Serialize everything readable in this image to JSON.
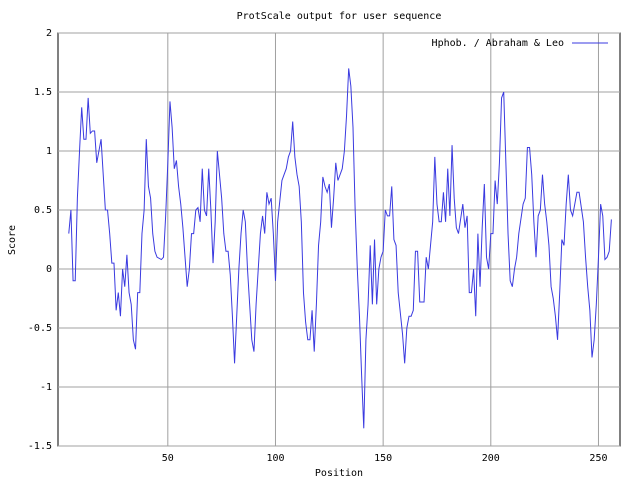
{
  "chart_data": {
    "type": "line",
    "title": "ProtScale output for user sequence",
    "x_label": "Position",
    "y_label": "Score",
    "xlim": [
      -1,
      260
    ],
    "ylim": [
      -1.5,
      2
    ],
    "xticks": [
      50,
      100,
      150,
      200,
      250
    ],
    "yticks": [
      -1.5,
      -1,
      -0.5,
      0,
      0.5,
      1,
      1.5,
      2
    ],
    "grid": true,
    "legend": "upper right",
    "x": [
      4,
      5,
      6,
      7,
      8,
      9,
      10,
      11,
      12,
      13,
      14,
      15,
      16,
      17,
      19,
      20,
      21,
      22,
      23,
      24,
      25,
      26,
      27,
      28,
      29,
      30,
      31,
      32,
      33,
      34,
      35,
      36,
      37,
      38,
      39,
      40,
      41,
      42,
      43,
      44,
      45,
      47,
      48,
      49,
      50,
      51,
      52,
      53,
      54,
      55,
      56,
      57,
      58,
      59,
      60,
      61,
      62,
      63,
      64,
      65,
      66,
      67,
      68,
      69,
      70,
      71,
      72,
      73,
      75,
      76,
      77,
      78,
      79,
      80,
      81,
      82,
      83,
      84,
      85,
      86,
      87,
      88,
      89,
      90,
      91,
      92,
      93,
      94,
      95,
      96,
      97,
      98,
      99,
      100,
      101,
      103,
      104,
      105,
      106,
      107,
      108,
      109,
      110,
      111,
      112,
      113,
      114,
      115,
      116,
      117,
      118,
      119,
      120,
      121,
      122,
      123,
      124,
      125,
      126,
      127,
      128,
      129,
      131,
      132,
      133,
      134,
      135,
      136,
      137,
      138,
      139,
      140,
      141,
      142,
      143,
      144,
      145,
      146,
      147,
      148,
      149,
      150,
      151,
      152,
      153,
      154,
      155,
      156,
      157,
      159,
      160,
      161,
      162,
      163,
      164,
      165,
      166,
      167,
      168,
      169,
      170,
      171,
      172,
      173,
      174,
      175,
      176,
      177,
      178,
      179,
      180,
      181,
      182,
      183,
      184,
      185,
      187,
      188,
      189,
      190,
      191,
      192,
      193,
      194,
      195,
      196,
      197,
      198,
      199,
      200,
      201,
      202,
      203,
      204,
      205,
      206,
      207,
      208,
      209,
      210,
      211,
      212,
      213,
      215,
      216,
      217,
      218,
      219,
      220,
      221,
      222,
      223,
      224,
      225,
      226,
      227,
      228,
      229,
      230,
      231,
      232,
      233,
      234,
      235,
      236,
      237,
      238,
      239,
      240,
      241,
      243,
      244,
      245,
      246,
      247,
      248,
      249,
      250,
      251,
      252,
      253,
      254,
      255,
      256
    ],
    "series": [
      {
        "name": "Hphob. / Abraham & Leo",
        "color": "#3a3ae0",
        "values": [
          0.3,
          0.5,
          -0.1,
          -0.1,
          0.6,
          1.0,
          1.37,
          1.1,
          1.1,
          1.45,
          1.15,
          1.17,
          1.17,
          0.9,
          1.1,
          0.8,
          0.5,
          0.5,
          0.3,
          0.05,
          0.05,
          -0.35,
          -0.2,
          -0.4,
          0.0,
          -0.15,
          0.12,
          -0.2,
          -0.3,
          -0.6,
          -0.68,
          -0.2,
          -0.2,
          0.3,
          0.5,
          1.1,
          0.7,
          0.6,
          0.3,
          0.15,
          0.1,
          0.08,
          0.1,
          0.45,
          0.9,
          1.42,
          1.2,
          0.85,
          0.92,
          0.7,
          0.55,
          0.35,
          0.1,
          -0.15,
          0.0,
          0.3,
          0.3,
          0.5,
          0.52,
          0.4,
          0.85,
          0.5,
          0.45,
          0.85,
          0.5,
          0.05,
          0.4,
          1.0,
          0.6,
          0.3,
          0.15,
          0.15,
          -0.05,
          -0.4,
          -0.8,
          -0.4,
          0.0,
          0.3,
          0.5,
          0.4,
          0.0,
          -0.3,
          -0.6,
          -0.7,
          -0.3,
          0.0,
          0.3,
          0.45,
          0.3,
          0.65,
          0.55,
          0.6,
          0.3,
          -0.1,
          0.4,
          0.75,
          0.8,
          0.85,
          0.95,
          1.0,
          1.25,
          0.95,
          0.8,
          0.7,
          0.4,
          -0.2,
          -0.45,
          -0.6,
          -0.6,
          -0.35,
          -0.7,
          -0.3,
          0.2,
          0.4,
          0.78,
          0.7,
          0.65,
          0.72,
          0.35,
          0.6,
          0.9,
          0.75,
          0.85,
          1.0,
          1.3,
          1.7,
          1.55,
          1.2,
          0.5,
          0.0,
          -0.4,
          -0.9,
          -1.35,
          -0.6,
          -0.3,
          0.2,
          -0.3,
          0.25,
          -0.3,
          0.0,
          0.1,
          0.15,
          0.5,
          0.45,
          0.45,
          0.7,
          0.25,
          0.2,
          -0.2,
          -0.55,
          -0.8,
          -0.5,
          -0.4,
          -0.4,
          -0.35,
          0.15,
          0.15,
          -0.28,
          -0.28,
          -0.28,
          0.1,
          0.0,
          0.2,
          0.4,
          0.95,
          0.55,
          0.4,
          0.4,
          0.65,
          0.4,
          0.85,
          0.45,
          1.05,
          0.6,
          0.35,
          0.3,
          0.55,
          0.35,
          0.45,
          -0.2,
          -0.2,
          0.0,
          -0.4,
          0.3,
          -0.15,
          0.35,
          0.72,
          0.1,
          0.0,
          0.3,
          0.3,
          0.75,
          0.55,
          0.9,
          1.45,
          1.5,
          0.9,
          0.3,
          -0.1,
          -0.15,
          0.0,
          0.1,
          0.3,
          0.55,
          0.6,
          1.03,
          1.03,
          0.8,
          0.4,
          0.1,
          0.45,
          0.5,
          0.8,
          0.55,
          0.4,
          0.2,
          -0.15,
          -0.25,
          -0.4,
          -0.6,
          -0.2,
          0.25,
          0.2,
          0.55,
          0.8,
          0.5,
          0.45,
          0.55,
          0.65,
          0.65,
          0.4,
          0.1,
          -0.15,
          -0.35,
          -0.75,
          -0.6,
          -0.3,
          0.1,
          0.55,
          0.45,
          0.08,
          0.1,
          0.15,
          0.42
        ]
      }
    ]
  }
}
